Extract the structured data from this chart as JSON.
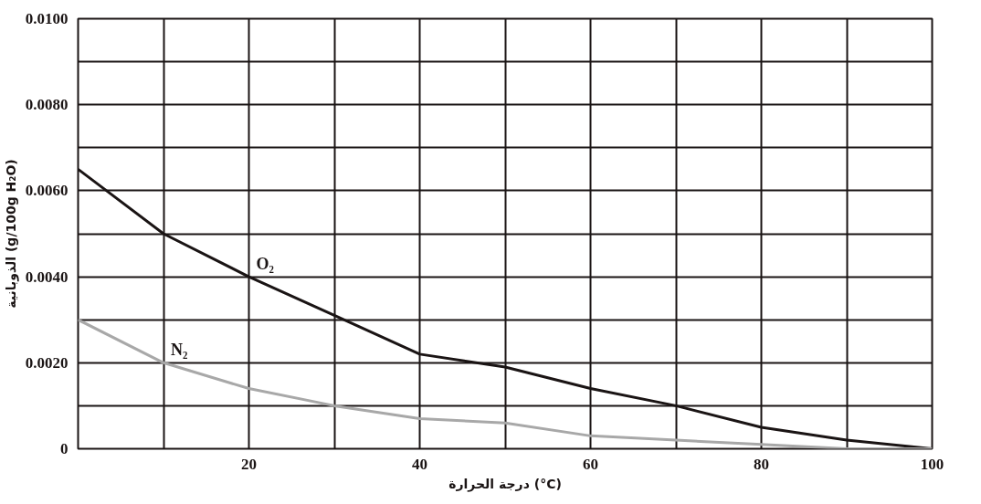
{
  "chart_data": {
    "type": "line",
    "xlabel": "درجة الحرارة (°C)",
    "ylabel": "الذوبانية (g/100g H₂O)",
    "x": [
      0,
      10,
      20,
      30,
      40,
      50,
      60,
      70,
      80,
      90,
      100
    ],
    "series": [
      {
        "name": "O₂",
        "color": "#1a1414",
        "values": [
          0.0065,
          0.005,
          0.004,
          0.0031,
          0.0022,
          0.0019,
          0.0014,
          0.001,
          0.0005,
          0.0002,
          0.0
        ]
      },
      {
        "name": "N₂",
        "color": "#a8a8a8",
        "values": [
          0.003,
          0.002,
          0.0014,
          0.001,
          0.0007,
          0.0006,
          0.0003,
          0.0002,
          0.0001,
          0.0,
          0.0
        ]
      }
    ],
    "xlim": [
      0,
      100
    ],
    "xticks": [
      {
        "value": 0,
        "label": null
      },
      {
        "value": 10,
        "label": null
      },
      20,
      {
        "value": 30,
        "label": null
      },
      40,
      {
        "value": 50,
        "label": null
      },
      60,
      {
        "value": 70,
        "label": null
      },
      80,
      {
        "value": 90,
        "label": null
      },
      100
    ],
    "ylim": [
      0,
      0.01
    ],
    "yticks": [
      0,
      {
        "value": 0.001,
        "label": null
      },
      {
        "value": 0.002,
        "label": "0.0020"
      },
      {
        "value": 0.003,
        "label": null
      },
      {
        "value": 0.004,
        "label": "0.0040"
      },
      {
        "value": 0.005,
        "label": null
      },
      {
        "value": 0.006,
        "label": "0.0060"
      },
      {
        "value": 0.007,
        "label": null
      },
      {
        "value": 0.008,
        "label": "0.0080"
      },
      {
        "value": 0.009,
        "label": null
      },
      {
        "value": 0.01,
        "label": "0.0100"
      }
    ],
    "grid": true,
    "marker": "none",
    "line_style": "solid"
  }
}
